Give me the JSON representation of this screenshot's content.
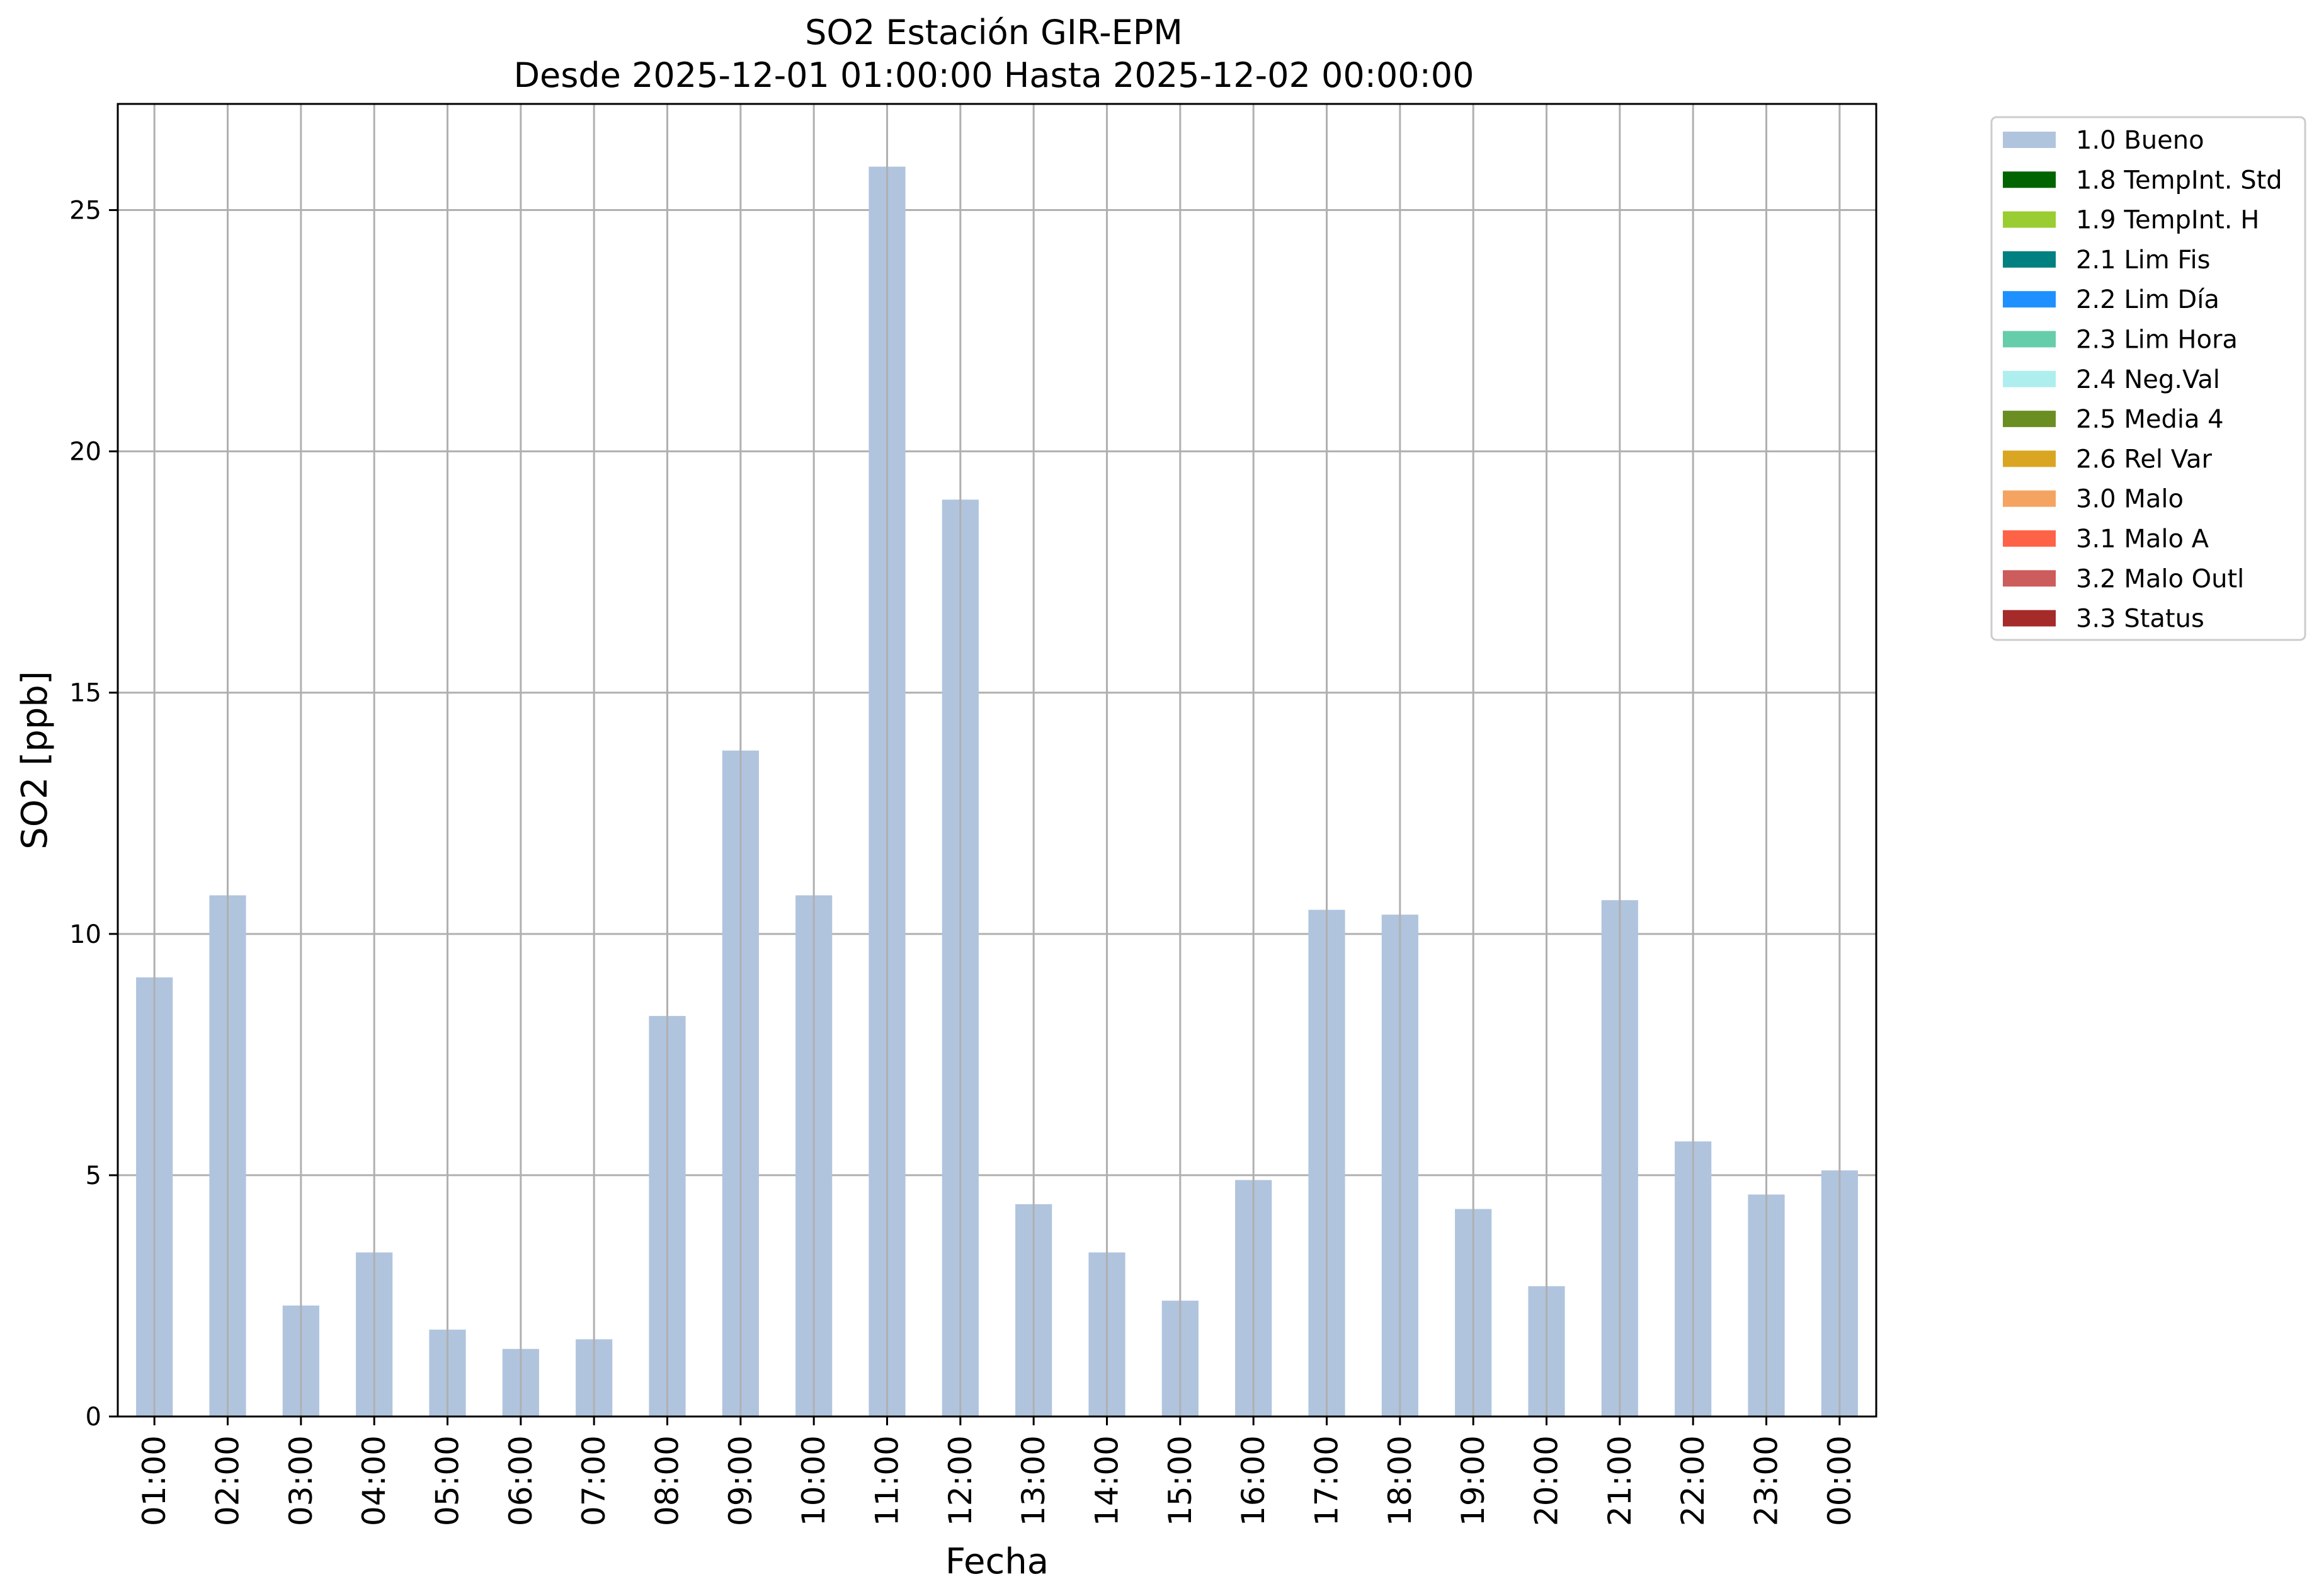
{
  "chart_data": {
    "type": "bar",
    "title": "SO2 Estación GIR-EPM",
    "subtitle": "Desde 2025-12-01 01:00:00 Hasta 2025-12-02 00:00:00",
    "xlabel": "Fecha",
    "ylabel": "SO2 [ppb]",
    "ylim": [
      0,
      27.2
    ],
    "yticks": [
      0,
      5,
      10,
      15,
      20,
      25
    ],
    "grid": true,
    "legend_position": "outside-top-right",
    "categories": [
      "01:00",
      "02:00",
      "03:00",
      "04:00",
      "05:00",
      "06:00",
      "07:00",
      "08:00",
      "09:00",
      "10:00",
      "11:00",
      "12:00",
      "13:00",
      "14:00",
      "15:00",
      "16:00",
      "17:00",
      "18:00",
      "19:00",
      "20:00",
      "21:00",
      "22:00",
      "23:00",
      "00:00"
    ],
    "series": [
      {
        "name": "1.0 Bueno",
        "color": "#b0c4de",
        "values": [
          9.1,
          10.8,
          2.3,
          3.4,
          1.8,
          1.4,
          1.6,
          8.3,
          13.8,
          10.8,
          25.9,
          19.0,
          4.4,
          3.4,
          2.4,
          4.9,
          10.5,
          10.4,
          4.3,
          2.7,
          10.7,
          5.7,
          4.6,
          5.1
        ]
      }
    ],
    "legend": [
      {
        "label": "1.0 Bueno",
        "color": "#b0c4de"
      },
      {
        "label": "1.8 TempInt. Std",
        "color": "#006400"
      },
      {
        "label": "1.9 TempInt. H",
        "color": "#9acd32"
      },
      {
        "label": "2.1 Lim Fis",
        "color": "#008080"
      },
      {
        "label": "2.2 Lim Día",
        "color": "#1e90ff"
      },
      {
        "label": "2.3 Lim Hora",
        "color": "#66cdaa"
      },
      {
        "label": "2.4 Neg.Val",
        "color": "#afeeee"
      },
      {
        "label": "2.5 Media 4",
        "color": "#6b8e23"
      },
      {
        "label": "2.6 Rel Var",
        "color": "#daa520"
      },
      {
        "label": "3.0 Malo",
        "color": "#f4a460"
      },
      {
        "label": "3.1 Malo A",
        "color": "#ff6347"
      },
      {
        "label": "3.2 Malo Outl",
        "color": "#cd5c5c"
      },
      {
        "label": "3.3 Status",
        "color": "#a52a2a"
      }
    ]
  }
}
